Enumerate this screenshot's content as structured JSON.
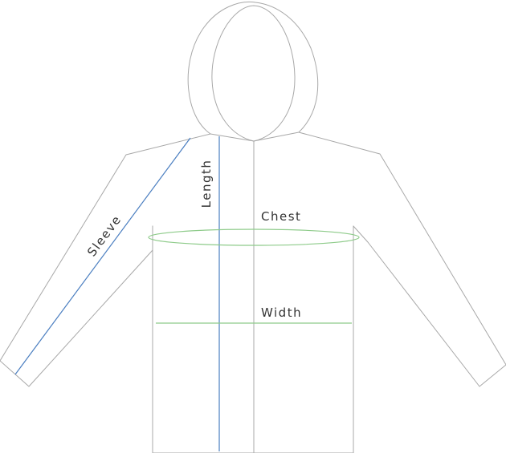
{
  "labels": {
    "sleeve": "Sleeve",
    "length": "Length",
    "chest": "Chest",
    "width": "Width"
  },
  "colors": {
    "outline": "#a8a8a8",
    "sleeve_line": "#4a7ec0",
    "length_line": "#4a7ec0",
    "chest_line": "#8ecb8a",
    "width_line": "#8ecb8a"
  }
}
